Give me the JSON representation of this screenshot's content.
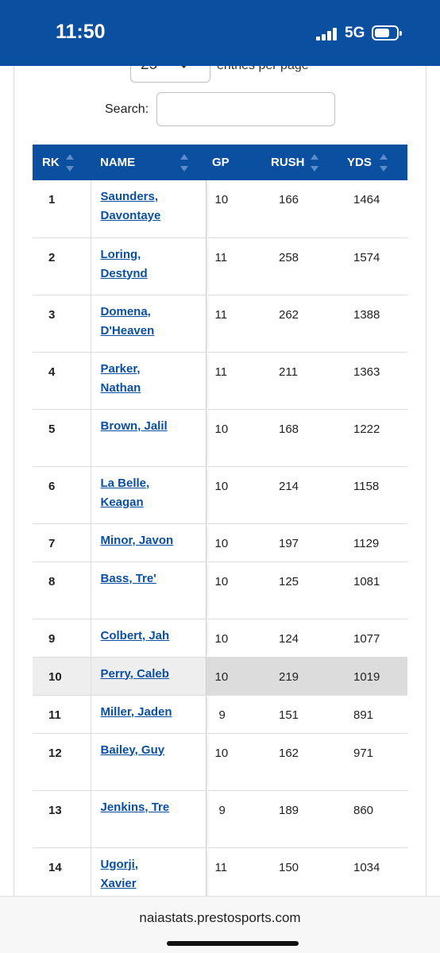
{
  "status_bar": {
    "time": "11:50",
    "network": "5G"
  },
  "controls": {
    "entries_value": "25",
    "entries_label": "entries per page",
    "search_label": "Search:",
    "search_value": ""
  },
  "table": {
    "headers": {
      "rk": "RK",
      "name": "NAME",
      "gp": "GP",
      "rush": "RUSH",
      "yds": "YDS"
    },
    "rows": [
      {
        "rk": "1",
        "first": "Saunders,",
        "last": "Davontaye",
        "gp": "10",
        "rush": "166",
        "yds": "1464"
      },
      {
        "rk": "2",
        "first": "Loring,",
        "last": "Destynd",
        "gp": "11",
        "rush": "258",
        "yds": "1574"
      },
      {
        "rk": "3",
        "first": "Domena,",
        "last": "D'Heaven",
        "gp": "11",
        "rush": "262",
        "yds": "1388"
      },
      {
        "rk": "4",
        "first": "Parker,",
        "last": "Nathan",
        "gp": "11",
        "rush": "211",
        "yds": "1363"
      },
      {
        "rk": "5",
        "first": "Brown, Jalil",
        "last": "",
        "gp": "10",
        "rush": "168",
        "yds": "1222"
      },
      {
        "rk": "6",
        "first": "La Belle,",
        "last": "Keagan",
        "gp": "10",
        "rush": "214",
        "yds": "1158"
      },
      {
        "rk": "7",
        "first": "Minor, Javon",
        "last": "",
        "gp": "10",
        "rush": "197",
        "yds": "1129"
      },
      {
        "rk": "8",
        "first": "Bass, Tre'",
        "last": "",
        "gp": "10",
        "rush": "125",
        "yds": "1081"
      },
      {
        "rk": "9",
        "first": "Colbert, Jah",
        "last": "",
        "gp": "10",
        "rush": "124",
        "yds": "1077"
      },
      {
        "rk": "10",
        "first": "Perry, Caleb",
        "last": "",
        "gp": "10",
        "rush": "219",
        "yds": "1019"
      },
      {
        "rk": "11",
        "first": "Miller, Jaden",
        "last": "",
        "gp": "9",
        "rush": "151",
        "yds": "891"
      },
      {
        "rk": "12",
        "first": "Bailey, Guy",
        "last": "",
        "gp": "10",
        "rush": "162",
        "yds": "971"
      },
      {
        "rk": "13",
        "first": "Jenkins, Tre",
        "last": "",
        "gp": "9",
        "rush": "189",
        "yds": "860"
      },
      {
        "rk": "14",
        "first": "Ugorji,",
        "last": "Xavier",
        "gp": "11",
        "rush": "150",
        "yds": "1034"
      }
    ]
  },
  "browser": {
    "url": "naiastats.prestosports.com"
  },
  "colors": {
    "brand_blue": "#0b4fa0",
    "highlight_row": "#dcdcdc"
  }
}
